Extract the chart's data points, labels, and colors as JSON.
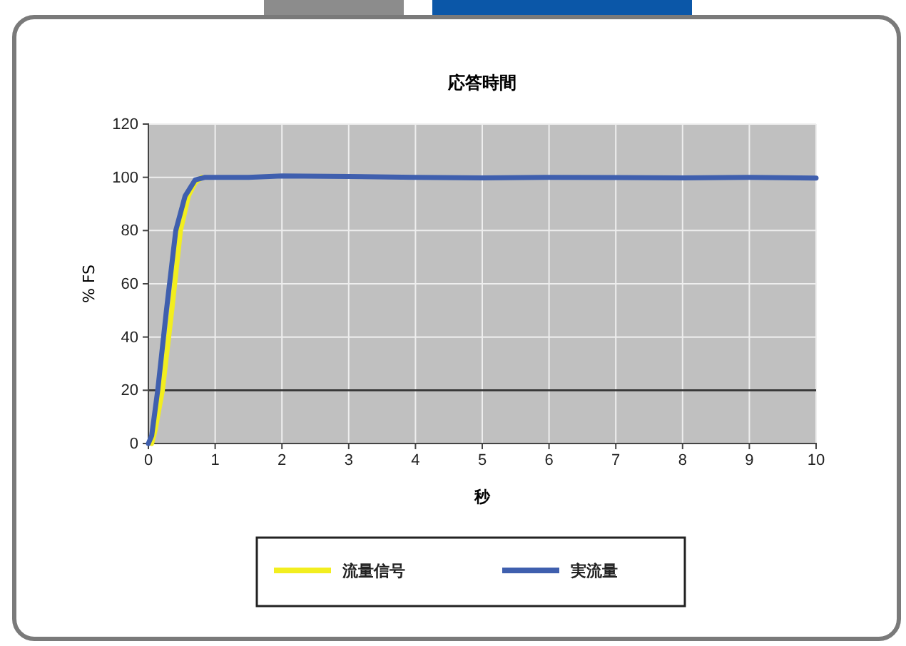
{
  "chart_data": {
    "type": "line",
    "title": "応答時間",
    "xlabel": "秒",
    "ylabel": "% FS",
    "xlim": [
      0,
      10
    ],
    "xticks": [
      0,
      1,
      2,
      3,
      4,
      5,
      6,
      7,
      8,
      9,
      10
    ],
    "ylim": [
      0,
      120
    ],
    "yticks": [
      0,
      20,
      40,
      60,
      80,
      100,
      120
    ],
    "grid": true,
    "legend": "bottom",
    "ref_lines": [
      {
        "axis": "y",
        "value": 20,
        "color": "#333333"
      }
    ],
    "series": [
      {
        "name": "流量信号",
        "color": "#f2ee1f",
        "x": [
          0.05,
          0.1,
          0.21,
          0.35,
          0.48,
          0.6,
          0.7,
          0.8
        ],
        "values": [
          0,
          5,
          20,
          50,
          80,
          93,
          98,
          100
        ]
      },
      {
        "name": "実流量",
        "color": "#3f5fae",
        "x": [
          0,
          0.05,
          0.14,
          0.27,
          0.41,
          0.55,
          0.7,
          0.85,
          1.5,
          2,
          3,
          4,
          5,
          6,
          7,
          8,
          9,
          10
        ],
        "values": [
          0,
          3,
          20,
          50,
          80,
          93,
          99,
          100,
          100,
          100.5,
          100.3,
          100,
          99.8,
          100,
          99.9,
          99.8,
          100,
          99.7
        ]
      }
    ]
  }
}
